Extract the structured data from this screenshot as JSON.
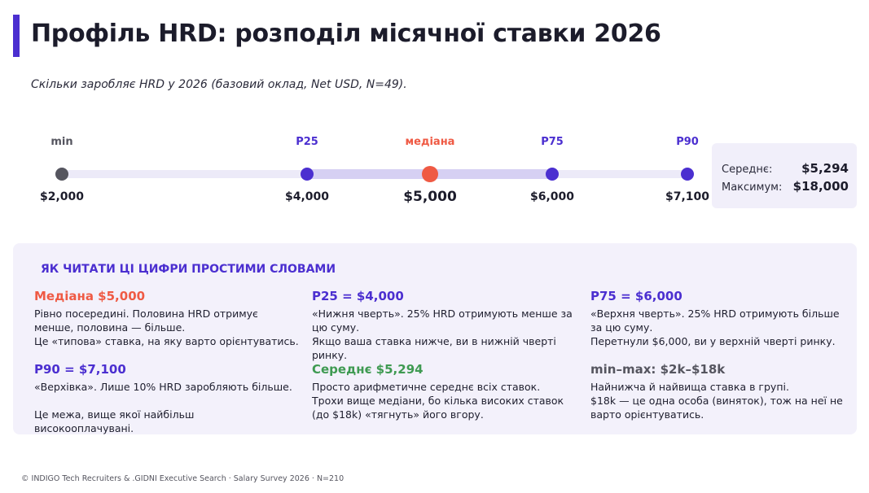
{
  "header": {
    "title": "Профіль HRD: розподіл місячної ставки 2026",
    "subtitle": "Скільки заробляє HRD у 2026 (базовий оклад, Net USD, N=49)."
  },
  "chart_data": {
    "type": "range",
    "unit": "USD",
    "points": [
      {
        "key": "min",
        "label": "min",
        "value": 2000,
        "display": "$2,000"
      },
      {
        "key": "p25",
        "label": "P25",
        "value": 4000,
        "display": "$4,000"
      },
      {
        "key": "median",
        "label": "медіана",
        "value": 5000,
        "display": "$5,000"
      },
      {
        "key": "p75",
        "label": "P75",
        "value": 6000,
        "display": "$6,000"
      },
      {
        "key": "p90",
        "label": "P90",
        "value": 7100,
        "display": "$7,100"
      }
    ],
    "mean": {
      "label": "Середнє:",
      "value": 5294,
      "display": "$5,294"
    },
    "max": {
      "label": "Максимум:",
      "value": 18000,
      "display": "$18,000"
    }
  },
  "explainer": {
    "heading": "ЯК ЧИТАТИ ЦІ ЦИФРИ  ПРОСТИМИ СЛОВАМИ",
    "cards": {
      "median": {
        "title": "Медіана $5,000",
        "lines": [
          "Рівно посередині. Половина HRD отримує",
          "менше, половина — більше.",
          "Це «типова» ставка, на яку варто орієнтуватись."
        ]
      },
      "p25": {
        "title": "P25 = $4,000",
        "lines": [
          "«Нижня чверть». 25% HRD отримують менше за",
          "цю суму.",
          "Якщо ваша ставка нижче, ви в нижній чверті",
          "ринку."
        ]
      },
      "p75": {
        "title": "P75 = $6,000",
        "lines": [
          "«Верхня чверть». 25% HRD отримують більше",
          "за цю суму.",
          "Перетнули $6,000,  ви у верхній чверті ринку."
        ]
      },
      "p90": {
        "title": "P90 = $7,100",
        "lines": [
          "«Верхівка». Лише 10% HRD заробляють більше.",
          "Це межа, вище якої найбільш",
          "високооплачувані."
        ]
      },
      "mean": {
        "title": "Середнє $5,294",
        "lines": [
          "Просто арифметичне середнє всіх ставок.",
          "Трохи вище медіани, бо кілька високих ставок",
          "(до $18k) «тягнуть» його вгору."
        ]
      },
      "range": {
        "title": "min–max: $2k–$18k",
        "lines": [
          "Найнижча й найвища ставка в групі.",
          "$18k — це одна особа (виняток), тож на неї не",
          "варто орієнтуватись."
        ]
      }
    }
  },
  "footer": {
    "text": "© INDIGO Tech Recruiters & .GIDNI Executive Search · Salary Survey 2026 · N=210"
  },
  "colors": {
    "accent": "#4b2fd0",
    "median": "#ef5a44",
    "mean": "#3f9a52",
    "min": "#55555f"
  }
}
